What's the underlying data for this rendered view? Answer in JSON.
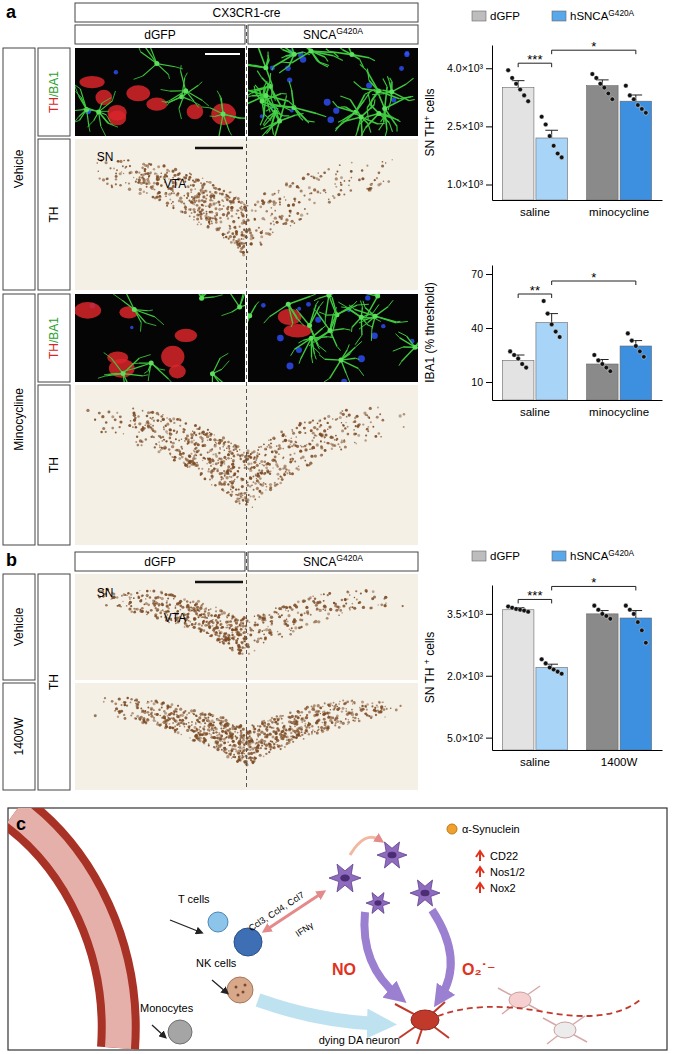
{
  "chart_data": [
    {
      "type": "bar",
      "title": "SN TH+ cells",
      "categories": [
        "saline",
        "minocycline"
      ],
      "series": [
        {
          "name": "dGFP",
          "color": "#bdbdbd",
          "colors": [
            "#e3e3e3",
            "#8a8a8a"
          ],
          "values": [
            3500,
            3550
          ],
          "errors": [
            180,
            150
          ],
          "points": [
            [
              3950,
              3750,
              3600,
              3450,
              3300,
              3150
            ],
            [
              3850,
              3750,
              3600,
              3500,
              3350,
              3200
            ]
          ]
        },
        {
          "name": "hSNCAG420A",
          "color": "#5aa7ea",
          "colors": [
            "#a8d4f7",
            "#3d8fe0"
          ],
          "values": [
            2200,
            3150
          ],
          "errors": [
            200,
            160
          ],
          "points": [
            [
              2750,
              2550,
              2250,
              2000,
              1800,
              1700
            ],
            [
              3550,
              3300,
              3200,
              3050,
              2950,
              2850
            ]
          ]
        }
      ],
      "ylim": [
        600,
        4600
      ],
      "yticks": [
        {
          "value": 1000,
          "label": "1.0×10³"
        },
        {
          "value": 2500,
          "label": "2.5×10³"
        },
        {
          "value": 4000,
          "label": "4.0×10³"
        }
      ],
      "legend": "top",
      "significance": [
        {
          "label": "***",
          "between": [
            [
              0,
              0
            ],
            [
              1,
              0
            ]
          ]
        },
        {
          "label": "*",
          "between": [
            [
              1,
              0
            ],
            [
              1,
              1
            ]
          ]
        }
      ]
    },
    {
      "type": "bar",
      "title": "IBA1 (% threshold)",
      "categories": [
        "saline",
        "minocycline"
      ],
      "series": [
        {
          "name": "dGFP",
          "color": "#bdbdbd",
          "colors": [
            "#e3e3e3",
            "#8a8a8a"
          ],
          "values": [
            22,
            20
          ],
          "errors": [
            3,
            2.5
          ],
          "points": [
            [
              27,
              25,
              23,
              20,
              18
            ],
            [
              25,
              22,
              20,
              18,
              16
            ]
          ]
        },
        {
          "name": "hSNCAG420A",
          "color": "#5aa7ea",
          "colors": [
            "#a8d4f7",
            "#3d8fe0"
          ],
          "values": [
            43,
            30
          ],
          "errors": [
            5,
            3
          ],
          "points": [
            [
              55,
              48,
              42,
              38,
              35
            ],
            [
              37,
              33,
              30,
              27,
              24
            ]
          ]
        }
      ],
      "ylim": [
        0,
        75
      ],
      "yticks": [
        10,
        40,
        70
      ],
      "significance": [
        {
          "label": "**",
          "between": [
            [
              0,
              0
            ],
            [
              1,
              0
            ]
          ]
        },
        {
          "label": "*",
          "between": [
            [
              1,
              0
            ],
            [
              1,
              1
            ]
          ]
        }
      ]
    },
    {
      "type": "bar",
      "title": "SN TH + cells",
      "categories": [
        "saline",
        "1400W"
      ],
      "series": [
        {
          "name": "dGFP",
          "color": "#bdbdbd",
          "colors": [
            "#e3e3e3",
            "#8a8a8a"
          ],
          "values": [
            3600,
            3500
          ],
          "errors": [
            50,
            80
          ],
          "points": [
            [
              3680,
              3650,
              3620,
              3600,
              3580,
              3550
            ],
            [
              3700,
              3600,
              3500,
              3450,
              3380
            ]
          ]
        },
        {
          "name": "hSNCAG420A",
          "color": "#5aa7ea",
          "colors": [
            "#a8d4f7",
            "#3d8fe0"
          ],
          "values": [
            2200,
            3400
          ],
          "errors": [
            80,
            180
          ],
          "points": [
            [
              2400,
              2300,
              2200,
              2150,
              2100,
              2050
            ],
            [
              3700,
              3600,
              3500,
              3300,
              3100,
              2800
            ]
          ]
        }
      ],
      "ylim": [
        200,
        4200
      ],
      "yticks": [
        {
          "value": 500,
          "label": "5.0×10²"
        },
        {
          "value": 2000,
          "label": "2.0×10³"
        },
        {
          "value": 3500,
          "label": "3.5×10³"
        }
      ],
      "legend": "top",
      "significance": [
        {
          "label": "***",
          "between": [
            [
              0,
              0
            ],
            [
              1,
              0
            ]
          ]
        },
        {
          "label": "*",
          "between": [
            [
              1,
              0
            ],
            [
              1,
              1
            ]
          ]
        }
      ]
    }
  ],
  "figure": {
    "panel_labels": [
      "a",
      "b",
      "c"
    ],
    "a": {
      "header": "CX3CR1-cre",
      "columns": [
        "dGFP",
        "SNCAG420A"
      ],
      "rows": [
        {
          "label": "Vehicle",
          "sublabels": [
            "TH/BA1",
            "TH"
          ]
        },
        {
          "label": "Minocycline",
          "sublabels": [
            "TH/BA1",
            "TH"
          ]
        }
      ],
      "region_labels": [
        "SN",
        "VTA"
      ]
    },
    "b": {
      "columns": [
        "dGFP",
        "SNCAG420A"
      ],
      "rows": [
        "Vehicle",
        "1400W"
      ],
      "stain": "TH",
      "region_labels": [
        "SN",
        "VTA"
      ]
    },
    "c": {
      "cells": [
        "T cells",
        "NK cells",
        "Monocytes"
      ],
      "signals": [
        "Ccl3, Ccl4, Ccl7",
        "IFNγ"
      ],
      "antigen": "α-Synuclein",
      "upregulated": [
        "CD22",
        "Nos1/2",
        "Nox2"
      ],
      "radicals": [
        "NO",
        "O₂˙⁻"
      ],
      "target": "dying DA neuron"
    }
  }
}
